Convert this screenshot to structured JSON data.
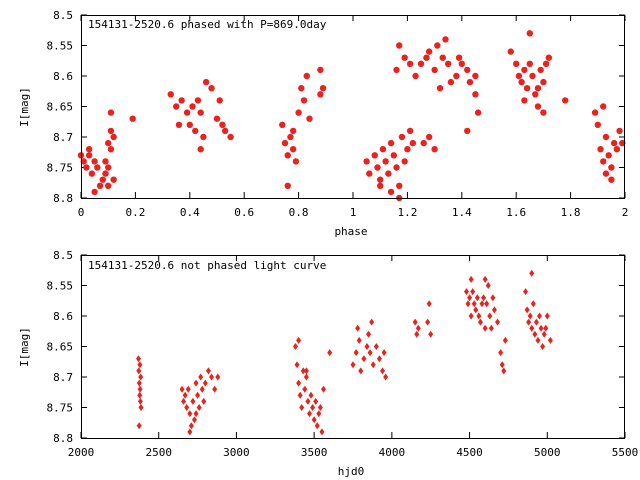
{
  "colors": {
    "points": "#e8231f",
    "axes": "#000000",
    "background": "#ffffff"
  },
  "chart_data": [
    {
      "type": "scatter",
      "title": "154131-2520.6 phased with P=869.0day",
      "xlabel": "phase",
      "ylabel": "I[mag]",
      "xlim": [
        0,
        2
      ],
      "ylim": [
        8.5,
        8.8
      ],
      "y_inverted": true,
      "marker": "filled-circle",
      "x_ticks": [
        0,
        0.2,
        0.4,
        0.6,
        0.8,
        1,
        1.2,
        1.4,
        1.6,
        1.8,
        2
      ],
      "x_tick_labels": [
        "0",
        "0.2",
        "0.4",
        "0.6",
        "0.8",
        "1",
        "1.2",
        "1.4",
        "1.6",
        "1.8",
        "2"
      ],
      "y_ticks": [
        8.5,
        8.55,
        8.6,
        8.65,
        8.7,
        8.75,
        8.8
      ],
      "y_tick_labels": [
        "8.5",
        "8.55",
        "8.6",
        "8.65",
        "8.7",
        "8.75",
        "8.8"
      ],
      "series": [
        {
          "points": [
            [
              0.0,
              8.73
            ],
            [
              0.01,
              8.74
            ],
            [
              0.02,
              8.75
            ],
            [
              0.03,
              8.73
            ],
            [
              0.04,
              8.76
            ],
            [
              0.05,
              8.74
            ],
            [
              0.06,
              8.75
            ],
            [
              0.07,
              8.78
            ],
            [
              0.03,
              8.72
            ],
            [
              0.05,
              8.79
            ],
            [
              0.08,
              8.77
            ],
            [
              0.09,
              8.76
            ],
            [
              0.1,
              8.78
            ],
            [
              0.1,
              8.75
            ],
            [
              0.11,
              8.72
            ],
            [
              0.11,
              8.69
            ],
            [
              0.1,
              8.71
            ],
            [
              0.12,
              8.7
            ],
            [
              0.11,
              8.66
            ],
            [
              0.09,
              8.74
            ],
            [
              0.12,
              8.77
            ],
            [
              0.19,
              8.67
            ],
            [
              0.33,
              8.63
            ],
            [
              0.35,
              8.65
            ],
            [
              0.37,
              8.64
            ],
            [
              0.39,
              8.66
            ],
            [
              0.4,
              8.68
            ],
            [
              0.41,
              8.65
            ],
            [
              0.42,
              8.69
            ],
            [
              0.43,
              8.64
            ],
            [
              0.44,
              8.66
            ],
            [
              0.45,
              8.7
            ],
            [
              0.46,
              8.61
            ],
            [
              0.48,
              8.62
            ],
            [
              0.5,
              8.67
            ],
            [
              0.51,
              8.64
            ],
            [
              0.52,
              8.68
            ],
            [
              0.53,
              8.69
            ],
            [
              0.55,
              8.7
            ],
            [
              0.36,
              8.68
            ],
            [
              0.44,
              8.72
            ],
            [
              0.74,
              8.68
            ],
            [
              0.75,
              8.71
            ],
            [
              0.76,
              8.73
            ],
            [
              0.77,
              8.7
            ],
            [
              0.78,
              8.72
            ],
            [
              0.79,
              8.74
            ],
            [
              0.76,
              8.78
            ],
            [
              0.78,
              8.69
            ],
            [
              0.8,
              8.66
            ],
            [
              0.81,
              8.62
            ],
            [
              0.82,
              8.64
            ],
            [
              0.83,
              8.6
            ],
            [
              0.84,
              8.67
            ],
            [
              0.88,
              8.59
            ],
            [
              0.89,
              8.62
            ],
            [
              0.88,
              8.63
            ],
            [
              1.05,
              8.74
            ],
            [
              1.06,
              8.76
            ],
            [
              1.08,
              8.73
            ],
            [
              1.09,
              8.75
            ],
            [
              1.1,
              8.77
            ],
            [
              1.11,
              8.72
            ],
            [
              1.12,
              8.74
            ],
            [
              1.13,
              8.76
            ],
            [
              1.14,
              8.71
            ],
            [
              1.15,
              8.73
            ],
            [
              1.16,
              8.75
            ],
            [
              1.17,
              8.78
            ],
            [
              1.18,
              8.7
            ],
            [
              1.19,
              8.74
            ],
            [
              1.2,
              8.72
            ],
            [
              1.21,
              8.69
            ],
            [
              1.22,
              8.71
            ],
            [
              1.14,
              8.79
            ],
            [
              1.17,
              8.8
            ],
            [
              1.1,
              8.78
            ],
            [
              1.16,
              8.59
            ],
            [
              1.17,
              8.55
            ],
            [
              1.19,
              8.57
            ],
            [
              1.21,
              8.58
            ],
            [
              1.23,
              8.6
            ],
            [
              1.25,
              8.58
            ],
            [
              1.27,
              8.57
            ],
            [
              1.28,
              8.56
            ],
            [
              1.3,
              8.59
            ],
            [
              1.31,
              8.55
            ],
            [
              1.33,
              8.57
            ],
            [
              1.35,
              8.58
            ],
            [
              1.36,
              8.61
            ],
            [
              1.38,
              8.6
            ],
            [
              1.39,
              8.57
            ],
            [
              1.4,
              8.58
            ],
            [
              1.42,
              8.59
            ],
            [
              1.43,
              8.61
            ],
            [
              1.45,
              8.63
            ],
            [
              1.46,
              8.66
            ],
            [
              1.28,
              8.7
            ],
            [
              1.3,
              8.72
            ],
            [
              1.26,
              8.71
            ],
            [
              1.42,
              8.69
            ],
            [
              1.34,
              8.54
            ],
            [
              1.32,
              8.62
            ],
            [
              1.45,
              8.6
            ],
            [
              1.58,
              8.56
            ],
            [
              1.6,
              8.58
            ],
            [
              1.61,
              8.6
            ],
            [
              1.62,
              8.61
            ],
            [
              1.63,
              8.59
            ],
            [
              1.64,
              8.62
            ],
            [
              1.65,
              8.58
            ],
            [
              1.66,
              8.6
            ],
            [
              1.67,
              8.63
            ],
            [
              1.68,
              8.62
            ],
            [
              1.69,
              8.59
            ],
            [
              1.7,
              8.61
            ],
            [
              1.71,
              8.58
            ],
            [
              1.72,
              8.57
            ],
            [
              1.65,
              8.53
            ],
            [
              1.63,
              8.64
            ],
            [
              1.68,
              8.65
            ],
            [
              1.7,
              8.66
            ],
            [
              1.78,
              8.64
            ],
            [
              1.89,
              8.66
            ],
            [
              1.9,
              8.68
            ],
            [
              1.91,
              8.72
            ],
            [
              1.92,
              8.74
            ],
            [
              1.93,
              8.7
            ],
            [
              1.94,
              8.73
            ],
            [
              1.95,
              8.75
            ],
            [
              1.96,
              8.71
            ],
            [
              1.97,
              8.72
            ],
            [
              1.98,
              8.69
            ],
            [
              1.99,
              8.71
            ],
            [
              1.93,
              8.76
            ],
            [
              1.95,
              8.77
            ],
            [
              1.92,
              8.65
            ]
          ]
        }
      ]
    },
    {
      "type": "scatter",
      "title": "154131-2520.6 not phased light curve",
      "xlabel": "hjd0",
      "ylabel": "I[mag]",
      "xlim": [
        2000,
        5500
      ],
      "ylim": [
        8.5,
        8.8
      ],
      "y_inverted": true,
      "marker": "filled-diamond",
      "x_ticks": [
        2000,
        2500,
        3000,
        3500,
        4000,
        4500,
        5000,
        5500
      ],
      "x_tick_labels": [
        "2000",
        "2500",
        "3000",
        "3500",
        "4000",
        "4500",
        "5000",
        "5500"
      ],
      "y_ticks": [
        8.5,
        8.55,
        8.6,
        8.65,
        8.7,
        8.75,
        8.8
      ],
      "y_tick_labels": [
        "8.5",
        "8.55",
        "8.6",
        "8.65",
        "8.7",
        "8.75",
        "8.8"
      ],
      "series": [
        {
          "points": [
            [
              2370,
              8.67
            ],
            [
              2372,
              8.69
            ],
            [
              2375,
              8.71
            ],
            [
              2378,
              8.73
            ],
            [
              2380,
              8.72
            ],
            [
              2382,
              8.74
            ],
            [
              2384,
              8.7
            ],
            [
              2386,
              8.75
            ],
            [
              2374,
              8.78
            ],
            [
              2379,
              8.68
            ],
            [
              2650,
              8.72
            ],
            [
              2660,
              8.74
            ],
            [
              2670,
              8.73
            ],
            [
              2680,
              8.75
            ],
            [
              2690,
              8.72
            ],
            [
              2700,
              8.76
            ],
            [
              2710,
              8.78
            ],
            [
              2720,
              8.74
            ],
            [
              2730,
              8.77
            ],
            [
              2740,
              8.71
            ],
            [
              2750,
              8.73
            ],
            [
              2760,
              8.75
            ],
            [
              2770,
              8.7
            ],
            [
              2780,
              8.72
            ],
            [
              2790,
              8.74
            ],
            [
              2800,
              8.71
            ],
            [
              2820,
              8.69
            ],
            [
              2840,
              8.7
            ],
            [
              2860,
              8.72
            ],
            [
              2880,
              8.7
            ],
            [
              2700,
              8.79
            ],
            [
              2740,
              8.76
            ],
            [
              3380,
              8.65
            ],
            [
              3390,
              8.68
            ],
            [
              3400,
              8.71
            ],
            [
              3410,
              8.73
            ],
            [
              3420,
              8.75
            ],
            [
              3430,
              8.69
            ],
            [
              3440,
              8.72
            ],
            [
              3450,
              8.7
            ],
            [
              3460,
              8.74
            ],
            [
              3470,
              8.76
            ],
            [
              3480,
              8.73
            ],
            [
              3490,
              8.75
            ],
            [
              3500,
              8.77
            ],
            [
              3510,
              8.74
            ],
            [
              3520,
              8.78
            ],
            [
              3530,
              8.76
            ],
            [
              3540,
              8.75
            ],
            [
              3550,
              8.79
            ],
            [
              3560,
              8.72
            ],
            [
              3600,
              8.66
            ],
            [
              3400,
              8.64
            ],
            [
              3450,
              8.69
            ],
            [
              3750,
              8.68
            ],
            [
              3770,
              8.66
            ],
            [
              3790,
              8.64
            ],
            [
              3800,
              8.69
            ],
            [
              3820,
              8.67
            ],
            [
              3840,
              8.65
            ],
            [
              3850,
              8.63
            ],
            [
              3860,
              8.66
            ],
            [
              3880,
              8.68
            ],
            [
              3900,
              8.65
            ],
            [
              3920,
              8.67
            ],
            [
              3940,
              8.69
            ],
            [
              3950,
              8.66
            ],
            [
              3960,
              8.7
            ],
            [
              3780,
              8.62
            ],
            [
              3870,
              8.61
            ],
            [
              4150,
              8.61
            ],
            [
              4160,
              8.63
            ],
            [
              4170,
              8.62
            ],
            [
              4230,
              8.61
            ],
            [
              4240,
              8.58
            ],
            [
              4250,
              8.63
            ],
            [
              4480,
              8.56
            ],
            [
              4490,
              8.58
            ],
            [
              4500,
              8.57
            ],
            [
              4510,
              8.6
            ],
            [
              4520,
              8.56
            ],
            [
              4530,
              8.58
            ],
            [
              4540,
              8.59
            ],
            [
              4550,
              8.57
            ],
            [
              4560,
              8.6
            ],
            [
              4570,
              8.61
            ],
            [
              4580,
              8.58
            ],
            [
              4590,
              8.57
            ],
            [
              4600,
              8.62
            ],
            [
              4610,
              8.58
            ],
            [
              4620,
              8.55
            ],
            [
              4630,
              8.6
            ],
            [
              4640,
              8.62
            ],
            [
              4650,
              8.57
            ],
            [
              4660,
              8.59
            ],
            [
              4680,
              8.61
            ],
            [
              4700,
              8.66
            ],
            [
              4710,
              8.68
            ],
            [
              4720,
              8.69
            ],
            [
              4730,
              8.64
            ],
            [
              4510,
              8.54
            ],
            [
              4600,
              8.54
            ],
            [
              4860,
              8.56
            ],
            [
              4870,
              8.59
            ],
            [
              4880,
              8.61
            ],
            [
              4890,
              8.6
            ],
            [
              4900,
              8.62
            ],
            [
              4910,
              8.58
            ],
            [
              4920,
              8.63
            ],
            [
              4930,
              8.61
            ],
            [
              4940,
              8.64
            ],
            [
              4950,
              8.6
            ],
            [
              4960,
              8.62
            ],
            [
              4970,
              8.65
            ],
            [
              4980,
              8.63
            ],
            [
              4990,
              8.62
            ],
            [
              5000,
              8.6
            ],
            [
              4900,
              8.53
            ],
            [
              5020,
              8.64
            ]
          ]
        }
      ]
    }
  ]
}
